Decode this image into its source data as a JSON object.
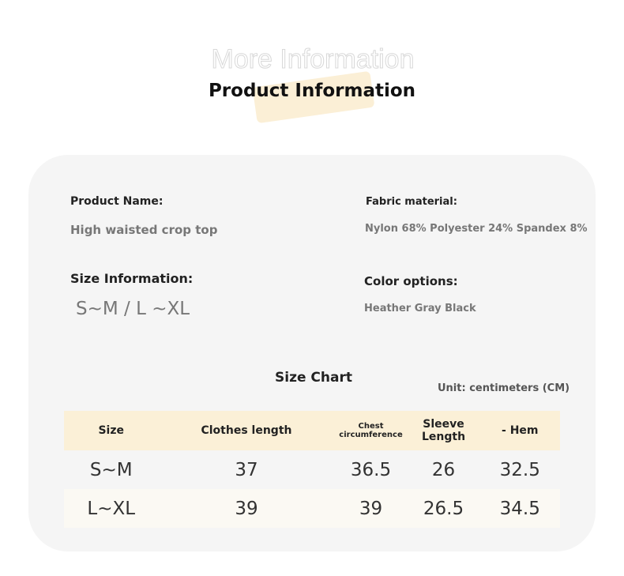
{
  "header": {
    "decor": "More Information",
    "title": "Product Information"
  },
  "info": {
    "product_name_label": "Product Name:",
    "product_name": "High waisted crop top",
    "fabric_label": "Fabric material:",
    "fabric": "Nylon 68% Polyester 24% Spandex 8%",
    "size_label": "Size Information:",
    "size": "S~M / L ~XL",
    "color_label": "Color options:",
    "color": "Heather Gray Black"
  },
  "table": {
    "title": "Size Chart",
    "unit": "Unit: centimeters (CM)",
    "headers": [
      "Size",
      "Clothes length",
      "Chest circumference",
      "Sleeve Length",
      "- Hem"
    ],
    "rows": [
      [
        "S~M",
        "37",
        "36.5",
        "26",
        "32.5"
      ],
      [
        "L~XL",
        "39",
        "39",
        "26.5",
        "34.5"
      ]
    ]
  }
}
